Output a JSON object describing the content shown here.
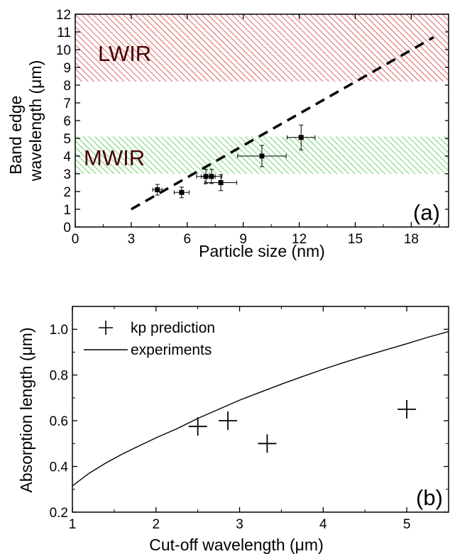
{
  "chart_data": [
    {
      "type": "scatter",
      "panel_label": "(a)",
      "xlabel": "Particle size (nm)",
      "ylabel": [
        "Band edge",
        "wavelength (μm)"
      ],
      "xlim": [
        0,
        20
      ],
      "ylim": [
        0,
        12
      ],
      "xticks": [
        "0",
        "3",
        "6",
        "9",
        "12",
        "15",
        "18"
      ],
      "yticks": [
        "0",
        "1",
        "2",
        "3",
        "4",
        "5",
        "6",
        "7",
        "8",
        "9",
        "10",
        "11",
        "12"
      ],
      "regions": [
        {
          "label": "LWIR",
          "y_range": [
            8.2,
            12
          ],
          "color": "#d02020"
        },
        {
          "label": "MWIR",
          "y_range": [
            3.0,
            5.1
          ],
          "color": "#30c030"
        }
      ],
      "series": [
        {
          "style": "square-markers-with-error-bars",
          "color": "#000000",
          "points": [
            {
              "x": 4.4,
              "y": 2.1,
              "xerr": 0.25,
              "yerr": 0.3
            },
            {
              "x": 5.7,
              "y": 1.95,
              "xerr": 0.4,
              "yerr": 0.3
            },
            {
              "x": 7.0,
              "y": 2.85,
              "xerr": 0.5,
              "yerr": 0.4
            },
            {
              "x": 7.3,
              "y": 2.85,
              "xerr": 0.55,
              "yerr": 0.4
            },
            {
              "x": 7.8,
              "y": 2.5,
              "xerr": 0.85,
              "yerr": 0.45
            },
            {
              "x": 10.0,
              "y": 4.0,
              "xerr": 1.3,
              "yerr": 0.6
            },
            {
              "x": 12.1,
              "y": 5.05,
              "xerr": 0.75,
              "yerr": 0.7
            }
          ]
        },
        {
          "style": "dashed-line",
          "color": "#000000",
          "x": [
            3.0,
            19.2
          ],
          "y": [
            1.0,
            10.7
          ]
        }
      ]
    },
    {
      "type": "scatter",
      "panel_label": "(b)",
      "xlabel": "Cut-off wavelength (μm)",
      "ylabel": "Absorption length (μm)",
      "xlim": [
        1,
        5.5
      ],
      "ylim": [
        0.2,
        1.1
      ],
      "xticks": [
        "1",
        "2",
        "3",
        "4",
        "5"
      ],
      "yticks": [
        "0.2",
        "0.4",
        "0.6",
        "0.8",
        "1.0"
      ],
      "legend_position": "top-left",
      "series": [
        {
          "name": "kp prediction",
          "style": "plus-markers",
          "color": "#000000",
          "x": [
            2.5,
            2.86,
            3.33,
            5.0
          ],
          "y": [
            0.575,
            0.6,
            0.5,
            0.65
          ]
        },
        {
          "name": "experiments",
          "style": "line",
          "color": "#000000",
          "x": [
            1.0,
            1.2,
            1.4,
            1.6,
            1.8,
            2.0,
            2.25,
            2.5,
            2.75,
            3.0,
            3.25,
            3.5,
            3.75,
            4.0,
            4.25,
            4.5,
            4.75,
            5.0,
            5.25,
            5.5
          ],
          "y": [
            0.315,
            0.37,
            0.415,
            0.455,
            0.49,
            0.525,
            0.565,
            0.61,
            0.65,
            0.69,
            0.725,
            0.76,
            0.793,
            0.825,
            0.855,
            0.883,
            0.91,
            0.937,
            0.965,
            0.99
          ]
        }
      ]
    }
  ]
}
